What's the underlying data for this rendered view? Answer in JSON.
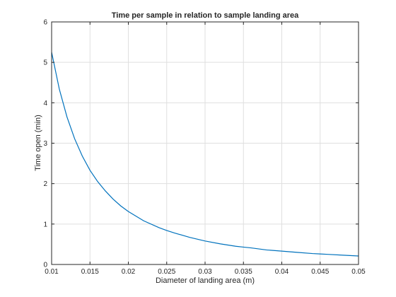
{
  "chart_data": {
    "type": "line",
    "title": "Time per sample in relation to sample landing area",
    "xlabel": "Diameter of landing area (m)",
    "ylabel": "Time open (min)",
    "xlim": [
      0.01,
      0.05
    ],
    "ylim": [
      0,
      6
    ],
    "x_ticks": [
      0.01,
      0.015,
      0.02,
      0.025,
      0.03,
      0.035,
      0.04,
      0.045,
      0.05
    ],
    "x_tick_labels": [
      "0.01",
      "0.015",
      "0.02",
      "0.025",
      "0.03",
      "0.035",
      "0.04",
      "0.045",
      "0.05"
    ],
    "y_ticks": [
      0,
      1,
      2,
      3,
      4,
      5,
      6
    ],
    "y_tick_labels": [
      "0",
      "1",
      "2",
      "3",
      "4",
      "5",
      "6"
    ],
    "grid": true,
    "box": true,
    "series": [
      {
        "color": "#0072bd",
        "x": [
          0.01,
          0.011,
          0.012,
          0.013,
          0.014,
          0.015,
          0.016,
          0.017,
          0.018,
          0.019,
          0.02,
          0.022,
          0.024,
          0.025,
          0.026,
          0.028,
          0.03,
          0.032,
          0.034,
          0.035,
          0.036,
          0.038,
          0.04,
          0.042,
          0.044,
          0.045,
          0.046,
          0.048,
          0.05
        ],
        "y": [
          5.25,
          4.34,
          3.65,
          3.11,
          2.68,
          2.33,
          2.05,
          1.82,
          1.62,
          1.45,
          1.31,
          1.08,
          0.91,
          0.84,
          0.78,
          0.67,
          0.58,
          0.51,
          0.45,
          0.43,
          0.41,
          0.36,
          0.33,
          0.3,
          0.27,
          0.26,
          0.25,
          0.23,
          0.21
        ]
      }
    ]
  }
}
